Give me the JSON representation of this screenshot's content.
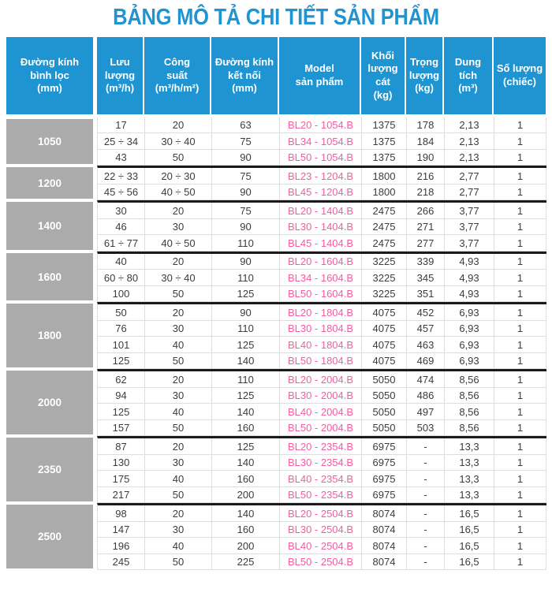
{
  "title": "BẢNG MÔ TẢ CHI TIẾT SẢN PHẨM",
  "colors": {
    "title_blue": "#1E94D2",
    "header_blue": "#1E94D2",
    "group_gray": "#ABABAB",
    "model_pink": "#F45CA2",
    "text_dark": "#3C3C3C",
    "grid_line": "#DEDEDE",
    "separator_black": "#1A1A1A"
  },
  "columns": [
    {
      "id": "duong-kinh-binh-loc",
      "label": "Đường kính\nbình lọc\n(mm)"
    },
    {
      "id": "luu-luong",
      "label": "Lưu\nlượng\n(m³/h)"
    },
    {
      "id": "cong-suat",
      "label": "Công\nsuất\n(m³/h/m²)"
    },
    {
      "id": "duong-kinh-ket-noi",
      "label": "Đường kính\nkết nối\n(mm)"
    },
    {
      "id": "model-san-pham",
      "label": "Model\nsản phẩm"
    },
    {
      "id": "khoi-luong-cat",
      "label": "Khối\nlượng\ncát\n(kg)"
    },
    {
      "id": "trong-luong",
      "label": "Trọng\nlượng\n(kg)"
    },
    {
      "id": "dung-tich",
      "label": "Dung\ntích\n(m³)"
    },
    {
      "id": "so-luong",
      "label": "Số lượng\n(chiếc)"
    }
  ],
  "groups": [
    {
      "diameter": "1050",
      "rows": [
        [
          "17",
          "20",
          "63",
          "BL20 - 1054.B",
          "1375",
          "178",
          "2,13",
          "1"
        ],
        [
          "25 ÷ 34",
          "30 ÷ 40",
          "75",
          "BL34 - 1054.B",
          "1375",
          "184",
          "2,13",
          "1"
        ],
        [
          "43",
          "50",
          "90",
          "BL50 - 1054.B",
          "1375",
          "190",
          "2,13",
          "1"
        ]
      ]
    },
    {
      "diameter": "1200",
      "rows": [
        [
          "22 ÷ 33",
          "20 ÷ 30",
          "75",
          "BL23 - 1204.B",
          "1800",
          "216",
          "2,77",
          "1"
        ],
        [
          "45 ÷ 56",
          "40 ÷ 50",
          "90",
          "BL45 - 1204.B",
          "1800",
          "218",
          "2,77",
          "1"
        ]
      ]
    },
    {
      "diameter": "1400",
      "rows": [
        [
          "30",
          "20",
          "75",
          "BL20 - 1404.B",
          "2475",
          "266",
          "3,77",
          "1"
        ],
        [
          "46",
          "30",
          "90",
          "BL30 - 1404.B",
          "2475",
          "271",
          "3,77",
          "1"
        ],
        [
          "61 ÷ 77",
          "40 ÷ 50",
          "110",
          "BL45 - 1404.B",
          "2475",
          "277",
          "3,77",
          "1"
        ]
      ]
    },
    {
      "diameter": "1600",
      "rows": [
        [
          "40",
          "20",
          "90",
          "BL20 - 1604.B",
          "3225",
          "339",
          "4,93",
          "1"
        ],
        [
          "60 ÷ 80",
          "30 ÷ 40",
          "110",
          "BL34 - 1604.B",
          "3225",
          "345",
          "4,93",
          "1"
        ],
        [
          "100",
          "50",
          "125",
          "BL50 - 1604.B",
          "3225",
          "351",
          "4,93",
          "1"
        ]
      ]
    },
    {
      "diameter": "1800",
      "rows": [
        [
          "50",
          "20",
          "90",
          "BL20 - 1804.B",
          "4075",
          "452",
          "6,93",
          "1"
        ],
        [
          "76",
          "30",
          "110",
          "BL30 - 1804.B",
          "4075",
          "457",
          "6,93",
          "1"
        ],
        [
          "101",
          "40",
          "125",
          "BL40 - 1804.B",
          "4075",
          "463",
          "6,93",
          "1"
        ],
        [
          "125",
          "50",
          "140",
          "BL50 - 1804.B",
          "4075",
          "469",
          "6,93",
          "1"
        ]
      ]
    },
    {
      "diameter": "2000",
      "rows": [
        [
          "62",
          "20",
          "110",
          "BL20 - 2004.B",
          "5050",
          "474",
          "8,56",
          "1"
        ],
        [
          "94",
          "30",
          "125",
          "BL30 - 2004.B",
          "5050",
          "486",
          "8,56",
          "1"
        ],
        [
          "125",
          "40",
          "140",
          "BL40 - 2004.B",
          "5050",
          "497",
          "8,56",
          "1"
        ],
        [
          "157",
          "50",
          "160",
          "BL50 - 2004.B",
          "5050",
          "503",
          "8,56",
          "1"
        ]
      ]
    },
    {
      "diameter": "2350",
      "rows": [
        [
          "87",
          "20",
          "125",
          "BL20 - 2354.B",
          "6975",
          "-",
          "13,3",
          "1"
        ],
        [
          "130",
          "30",
          "140",
          "BL30 - 2354.B",
          "6975",
          "-",
          "13,3",
          "1"
        ],
        [
          "175",
          "40",
          "160",
          "BL40 - 2354.B",
          "6975",
          "-",
          "13,3",
          "1"
        ],
        [
          "217",
          "50",
          "200",
          "BL50 - 2354.B",
          "6975",
          "-",
          "13,3",
          "1"
        ]
      ]
    },
    {
      "diameter": "2500",
      "rows": [
        [
          "98",
          "20",
          "140",
          "BL20 - 2504.B",
          "8074",
          "-",
          "16,5",
          "1"
        ],
        [
          "147",
          "30",
          "160",
          "BL30 - 2504.B",
          "8074",
          "-",
          "16,5",
          "1"
        ],
        [
          "196",
          "40",
          "200",
          "BL40 - 2504.B",
          "8074",
          "-",
          "16,5",
          "1"
        ],
        [
          "245",
          "50",
          "225",
          "BL50 - 2504.B",
          "8074",
          "-",
          "16,5",
          "1"
        ]
      ]
    }
  ]
}
